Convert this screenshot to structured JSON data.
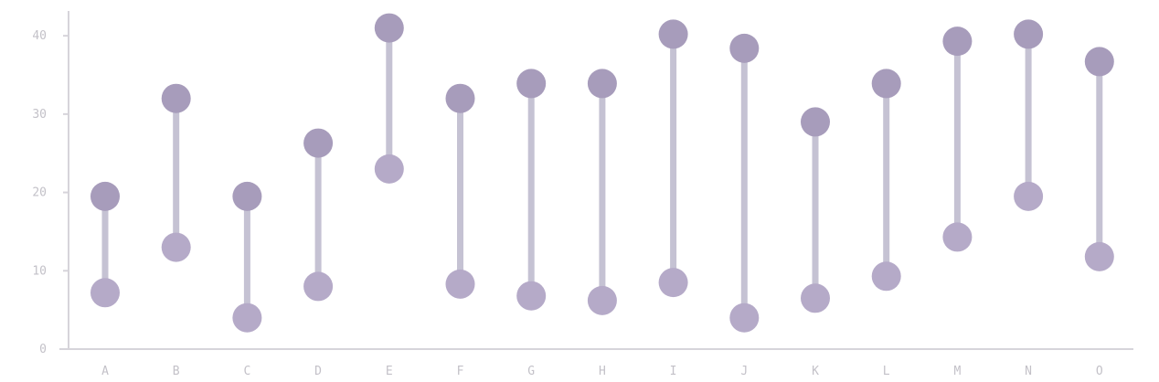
{
  "chart_data": {
    "type": "dumbbell",
    "title": "",
    "xlabel": "",
    "ylabel": "",
    "ylim": [
      0,
      42
    ],
    "yticks": [
      0,
      10,
      20,
      30,
      40
    ],
    "grid": false,
    "categories": [
      "A",
      "B",
      "C",
      "D",
      "E",
      "F",
      "G",
      "H",
      "I",
      "J",
      "K",
      "L",
      "M",
      "N",
      "O"
    ],
    "series": [
      {
        "values": [
          7.2,
          13.0,
          4.0,
          8.0,
          23.0,
          8.3,
          6.8,
          6.2,
          8.5,
          4.0,
          6.5,
          9.3,
          14.3,
          19.5,
          11.8
        ]
      },
      {
        "values": [
          19.5,
          32.0,
          19.5,
          26.3,
          41.0,
          32.0,
          33.9,
          33.9,
          40.2,
          38.4,
          29.0,
          33.9,
          39.3,
          40.2,
          36.7
        ]
      }
    ],
    "colors": {
      "connector": "#c5c2d3",
      "high_point": "#a79cbb",
      "low_point": "#b5aac8",
      "axis": "#d6d4da",
      "tick_text": "#c3c1c8"
    }
  }
}
